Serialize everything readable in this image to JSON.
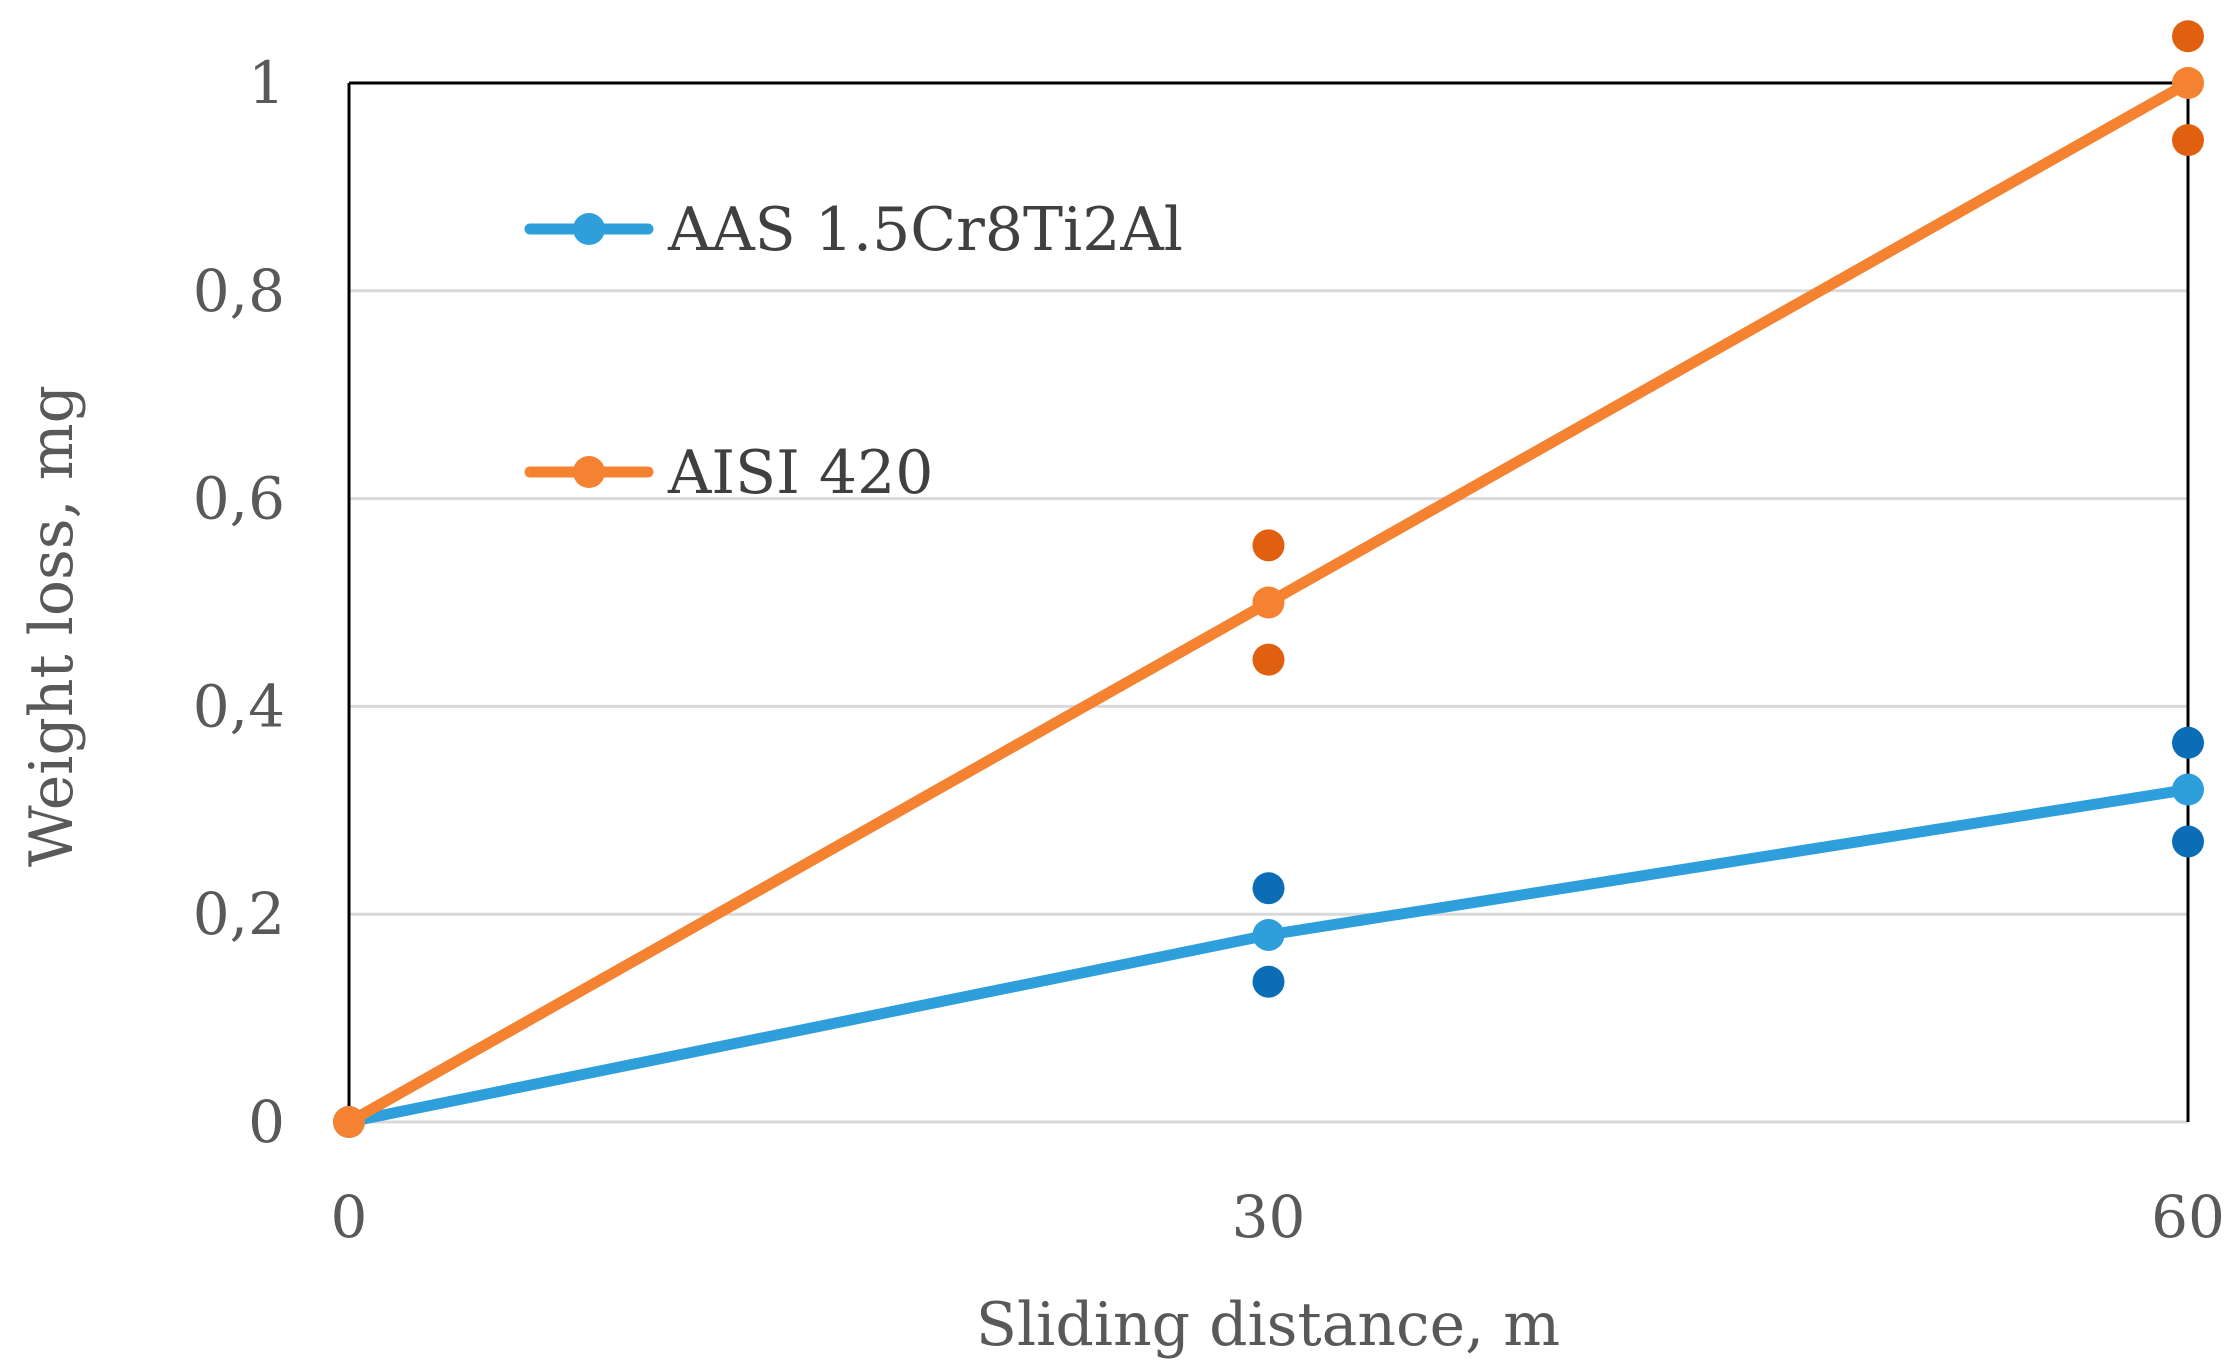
{
  "chart_data": {
    "type": "line",
    "title": "",
    "xlabel": "Sliding distance, m",
    "ylabel": "Weight loss, mg",
    "x": [
      0,
      30,
      60
    ],
    "x_tick_labels": [
      "0",
      "30",
      "60"
    ],
    "y_tick_labels": [
      "0",
      "0,2",
      "0,4",
      "0,6",
      "0,8",
      "1"
    ],
    "y_ticks": [
      0,
      0.2,
      0.4,
      0.6,
      0.8,
      1.0
    ],
    "xlim": [
      0,
      60
    ],
    "ylim": [
      0,
      1.0
    ],
    "grid": "horizontal",
    "legend_position": "top-left",
    "series": [
      {
        "name": "AAS 1.5Cr8Ti2Al",
        "values": [
          0,
          0.18,
          0.32
        ],
        "scatter": [
          [
            30,
            0.225
          ],
          [
            30,
            0.135
          ],
          [
            60,
            0.365
          ],
          [
            60,
            0.27
          ]
        ],
        "color": "#2E9FDB",
        "scatter_color": "#0A6DB5"
      },
      {
        "name": "AISI 420",
        "values": [
          0,
          0.5,
          1.0
        ],
        "scatter": [
          [
            30,
            0.555
          ],
          [
            30,
            0.445
          ],
          [
            60,
            1.045
          ],
          [
            60,
            0.945
          ]
        ],
        "color": "#F58231",
        "scatter_color": "#E06010"
      }
    ]
  }
}
